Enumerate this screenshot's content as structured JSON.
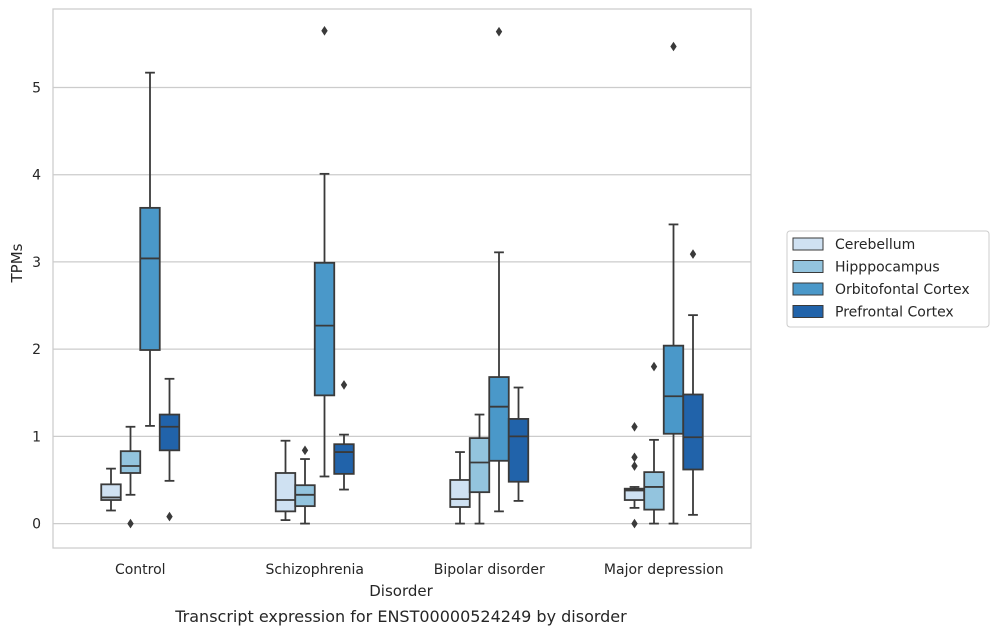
{
  "chart_data": {
    "type": "box",
    "xlabel": "Disorder",
    "ylabel": "TPMs",
    "caption": "Transcript expression for ENST00000524249 by disorder",
    "categories": [
      "Control",
      "Schizophrenia",
      "Bipolar disorder",
      "Major depression"
    ],
    "yticks": [
      0,
      1,
      2,
      3,
      4,
      5
    ],
    "ylim": [
      -0.28,
      5.9
    ],
    "grid": "horizontal",
    "legend_position": "right",
    "series": [
      {
        "name": "Cerebellum",
        "color": "#cfe1f2",
        "boxes": [
          {
            "whislo": 0.15,
            "q1": 0.27,
            "med": 0.3,
            "q3": 0.45,
            "whishi": 0.63,
            "fliers": []
          },
          {
            "whislo": 0.04,
            "q1": 0.14,
            "med": 0.27,
            "q3": 0.58,
            "whishi": 0.95,
            "fliers": []
          },
          {
            "whislo": 0.0,
            "q1": 0.19,
            "med": 0.28,
            "q3": 0.5,
            "whishi": 0.82,
            "fliers": []
          },
          {
            "whislo": 0.18,
            "q1": 0.27,
            "med": 0.38,
            "q3": 0.4,
            "whishi": 0.42,
            "fliers": [
              0.0,
              0.66,
              0.76,
              1.11
            ]
          }
        ]
      },
      {
        "name": "Hipppocampus",
        "color": "#93c4de",
        "boxes": [
          {
            "whislo": 0.33,
            "q1": 0.58,
            "med": 0.66,
            "q3": 0.83,
            "whishi": 1.11,
            "fliers": [
              0.0
            ]
          },
          {
            "whislo": 0.0,
            "q1": 0.2,
            "med": 0.33,
            "q3": 0.44,
            "whishi": 0.74,
            "fliers": [
              0.84
            ]
          },
          {
            "whislo": 0.0,
            "q1": 0.36,
            "med": 0.7,
            "q3": 0.98,
            "whishi": 1.25,
            "fliers": []
          },
          {
            "whislo": 0.0,
            "q1": 0.16,
            "med": 0.42,
            "q3": 0.59,
            "whishi": 0.96,
            "fliers": [
              1.8
            ]
          }
        ]
      },
      {
        "name": "Orbitofontal Cortex",
        "color": "#4a98c9",
        "boxes": [
          {
            "whislo": 1.12,
            "q1": 1.99,
            "med": 3.04,
            "q3": 3.62,
            "whishi": 5.17,
            "fliers": []
          },
          {
            "whislo": 0.54,
            "q1": 1.47,
            "med": 2.27,
            "q3": 2.99,
            "whishi": 4.01,
            "fliers": [
              5.65
            ]
          },
          {
            "whislo": 0.14,
            "q1": 0.72,
            "med": 1.34,
            "q3": 1.68,
            "whishi": 3.11,
            "fliers": [
              5.64
            ]
          },
          {
            "whislo": 0.0,
            "q1": 1.03,
            "med": 1.46,
            "q3": 2.04,
            "whishi": 3.43,
            "fliers": [
              5.47
            ]
          }
        ]
      },
      {
        "name": "Prefrontal Cortex",
        "color": "#2163aa",
        "boxes": [
          {
            "whislo": 0.49,
            "q1": 0.84,
            "med": 1.11,
            "q3": 1.25,
            "whishi": 1.66,
            "fliers": [
              0.08
            ]
          },
          {
            "whislo": 0.39,
            "q1": 0.57,
            "med": 0.82,
            "q3": 0.91,
            "whishi": 1.02,
            "fliers": [
              1.59
            ]
          },
          {
            "whislo": 0.26,
            "q1": 0.48,
            "med": 1.0,
            "q3": 1.2,
            "whishi": 1.56,
            "fliers": []
          },
          {
            "whislo": 0.1,
            "q1": 0.62,
            "med": 0.99,
            "q3": 1.48,
            "whishi": 2.39,
            "fliers": [
              3.09
            ]
          }
        ]
      }
    ]
  }
}
